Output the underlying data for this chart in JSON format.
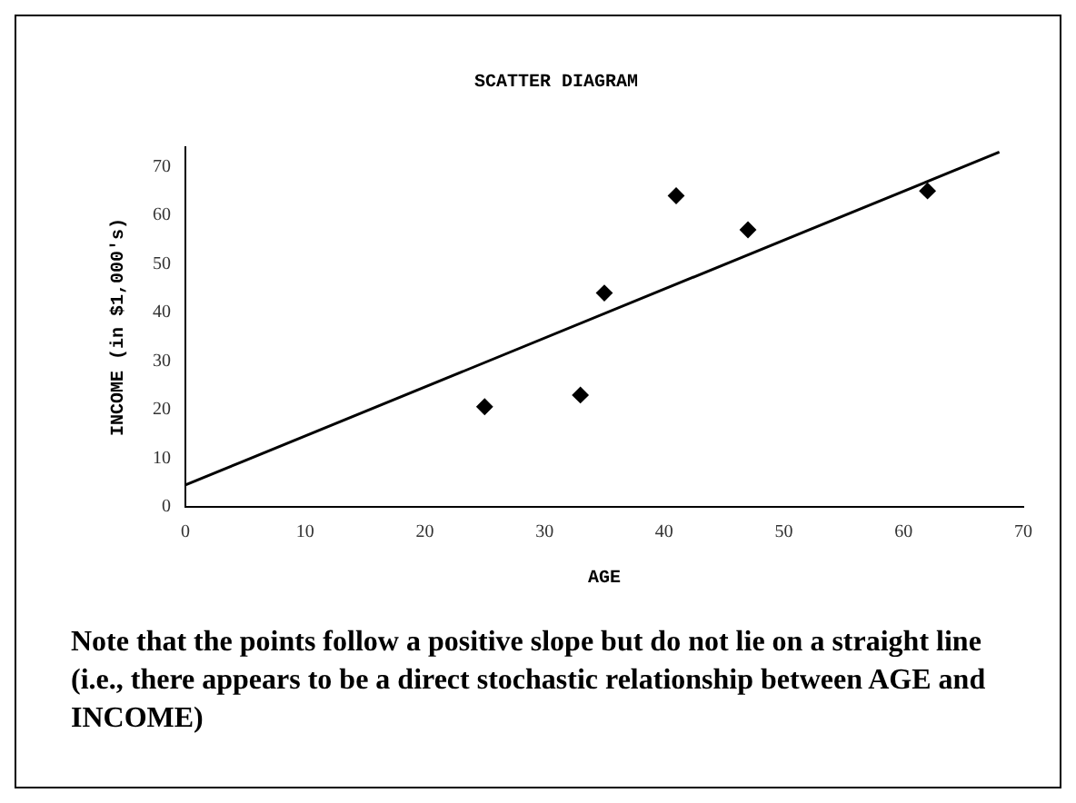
{
  "chart_data": {
    "type": "scatter",
    "title": "SCATTER DIAGRAM",
    "xlabel": "AGE",
    "ylabel": "INCOME (in $1,000's)",
    "x": [
      25,
      33,
      35,
      41,
      47,
      62
    ],
    "series": [
      {
        "color": "#000000",
        "values": [
          20.6,
          23,
          44,
          64,
          57,
          65
        ]
      },
      {
        "type": "line",
        "color": "#000000",
        "x": [
          0,
          68
        ],
        "values": [
          4.5,
          73
        ],
        "marker": "none"
      }
    ],
    "xlim": [
      0,
      70
    ],
    "xticks": [
      0,
      10,
      20,
      30,
      40,
      50,
      60,
      70
    ],
    "ylim": [
      0,
      74
    ],
    "yticks": [
      0,
      10,
      20,
      30,
      40,
      50,
      60,
      70
    ],
    "grid": false,
    "legend": false,
    "marker": "diamond",
    "line_style": "solid",
    "annotations": [
      "Note that the points follow a positive slope but do not lie on a straight line (i.e., there appears to be a direct stochastic relationship between AGE and INCOME)"
    ]
  }
}
